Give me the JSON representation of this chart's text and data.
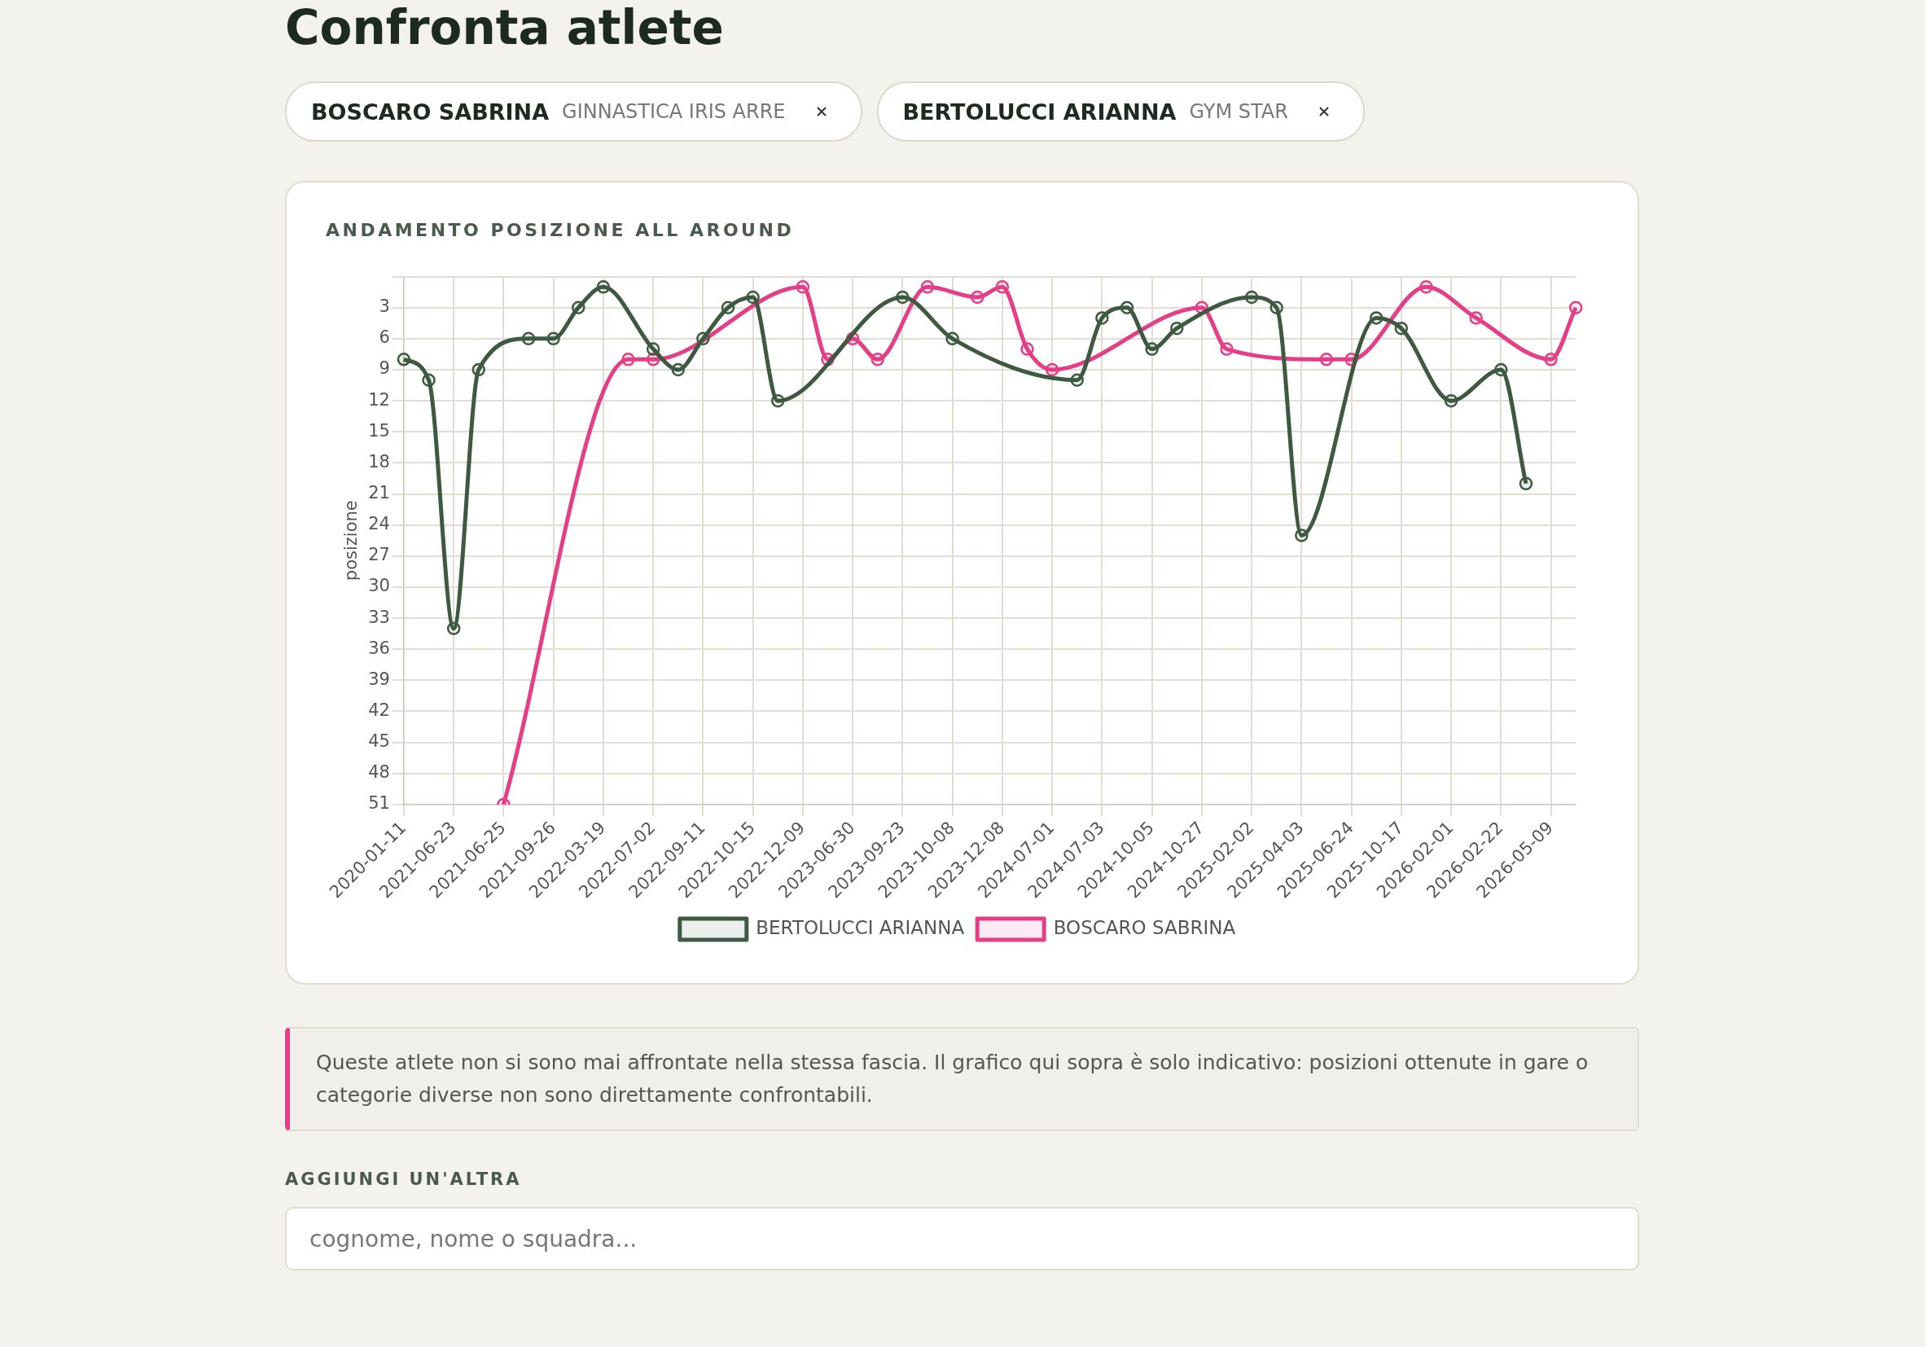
{
  "chart_data": {
    "type": "line",
    "title": "ANDAMENTO POSIZIONE ALL AROUND",
    "ylabel": "posizione",
    "categories": [
      "2020-01-11",
      null,
      "2021-06-23",
      null,
      "2021-06-25",
      null,
      "2021-09-26",
      null,
      "2022-03-19",
      null,
      "2022-07-02",
      null,
      "2022-09-11",
      null,
      "2022-10-15",
      null,
      "2022-12-09",
      null,
      "2023-06-30",
      null,
      "2023-09-23",
      null,
      "2023-10-08",
      null,
      "2023-12-08",
      null,
      "2024-07-01",
      null,
      "2024-07-03",
      null,
      "2024-10-05",
      null,
      "2024-10-27",
      null,
      "2025-02-02",
      null,
      "2025-04-03",
      null,
      "2025-06-24",
      null,
      "2025-10-17",
      null,
      "2026-02-01",
      null,
      "2026-02-22",
      null,
      "2026-05-09",
      null
    ],
    "series": [
      {
        "name": "BERTOLUCCI ARIANNA",
        "color": "#3d5a40",
        "values": [
          8,
          10,
          34,
          9,
          null,
          6,
          6,
          3,
          1,
          null,
          7,
          9,
          6,
          3,
          2,
          12,
          null,
          null,
          null,
          null,
          2,
          null,
          6,
          null,
          null,
          null,
          null,
          10,
          4,
          3,
          7,
          5,
          null,
          null,
          2,
          3,
          25,
          null,
          null,
          4,
          5,
          null,
          12,
          null,
          9,
          20,
          null,
          null
        ]
      },
      {
        "name": "BOSCARO SABRINA",
        "color": "#e63e86",
        "values": [
          null,
          null,
          null,
          null,
          51,
          null,
          null,
          null,
          null,
          8,
          8,
          null,
          null,
          null,
          null,
          null,
          1,
          8,
          6,
          8,
          null,
          1,
          null,
          2,
          1,
          7,
          9,
          null,
          null,
          null,
          null,
          null,
          3,
          7,
          null,
          null,
          null,
          8,
          8,
          null,
          null,
          1,
          null,
          4,
          null,
          null,
          8,
          3
        ]
      }
    ],
    "ylim": [
      51,
      0
    ],
    "yticks": [
      {
        "value": 0,
        "label": null
      },
      3,
      6,
      9,
      12,
      15,
      18,
      21,
      24,
      27,
      30,
      33,
      36,
      39,
      42,
      45,
      48,
      51
    ],
    "grid": true,
    "legend": "bottom",
    "marker": "circle",
    "line_style": "solid",
    "annotations": [
      "Confronta atlete",
      "BOSCARO SABRINA",
      "GINNASTICA IRIS ARRE",
      "BERTOLUCCI ARIANNA",
      "GYM STAR",
      "Queste atlete non si sono mai affrontate nella stessa fascia. Il grafico qui sopra è solo indicativo: posizioni ottenute in gare o categorie diverse non sono direttamente confrontabili.",
      "AGGIUNGI UN'ALTRA",
      "cognome, nome o squadra..."
    ]
  }
}
